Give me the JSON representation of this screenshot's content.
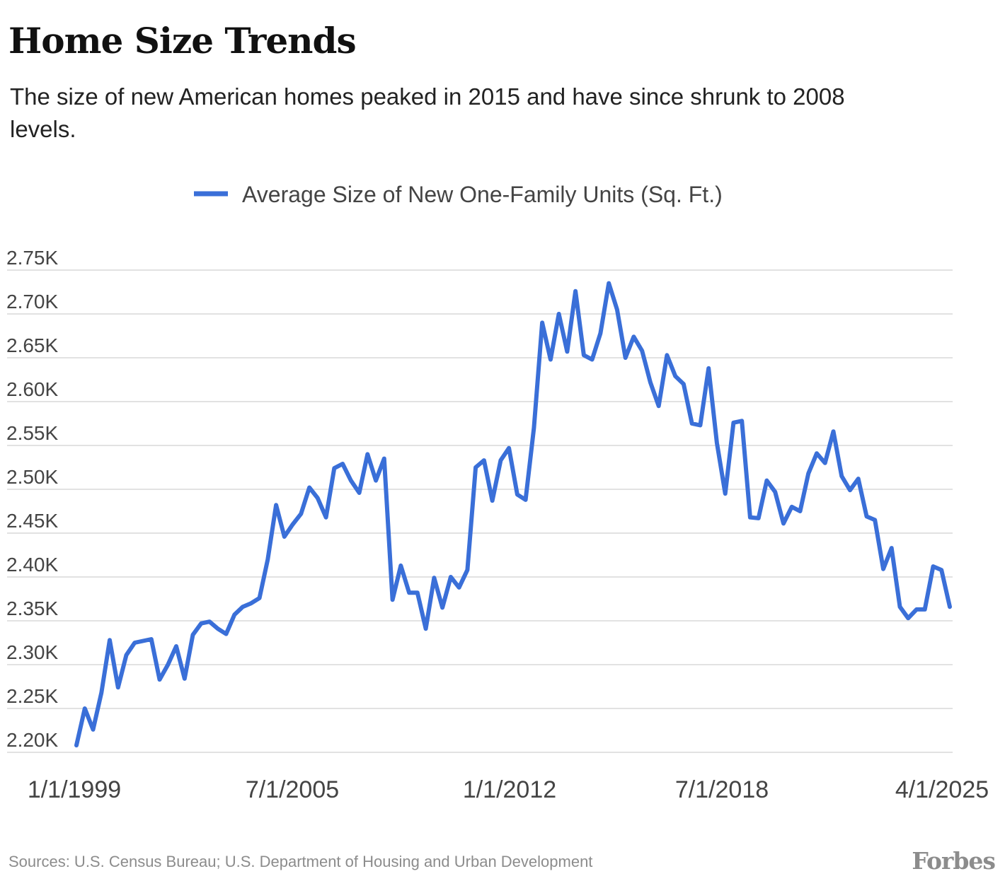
{
  "header": {
    "title": "Home Size Trends",
    "subtitle": "The size of new American homes peaked in 2015 and have since shrunk to 2008 levels."
  },
  "footer": {
    "sources": "Sources: U.S. Census Bureau; U.S. Department of Housing and Urban Development",
    "logo": "Forbes"
  },
  "colors": {
    "line": "#3A6FD8",
    "grid": "#e2e2e2",
    "tick_text": "#444444"
  },
  "chart_data": {
    "type": "line",
    "title": "Home Size Trends",
    "subtitle": "The size of new American homes peaked in 2015 and have since shrunk to 2008 levels.",
    "xlabel": "",
    "ylabel": "",
    "x_ticks": [
      "1/1/1999",
      "7/1/2005",
      "1/1/2012",
      "7/1/2018",
      "4/1/2025"
    ],
    "x_range": [
      "1/1/1999",
      "4/1/2025"
    ],
    "x_interval": "quarterly",
    "y_ticks": [
      2200,
      2250,
      2300,
      2350,
      2400,
      2450,
      2500,
      2550,
      2600,
      2650,
      2700,
      2750
    ],
    "y_tick_labels": [
      "2.20K",
      "2.25K",
      "2.30K",
      "2.35K",
      "2.40K",
      "2.45K",
      "2.50K",
      "2.55K",
      "2.60K",
      "2.65K",
      "2.70K",
      "2.75K"
    ],
    "ylim": [
      2200,
      2750
    ],
    "grid": true,
    "legend": "top-center",
    "series": [
      {
        "name": "Average Size of New One-Family Units (Sq. Ft.)",
        "color": "#3A6FD8",
        "values": [
          2208,
          2250,
          2226,
          2268,
          2328,
          2274,
          2311,
          2325,
          2327,
          2329,
          2283,
          2300,
          2321,
          2284,
          2334,
          2347,
          2349,
          2341,
          2335,
          2357,
          2366,
          2370,
          2376,
          2420,
          2482,
          2446,
          2460,
          2472,
          2502,
          2490,
          2468,
          2524,
          2529,
          2510,
          2496,
          2540,
          2510,
          2535,
          2374,
          2413,
          2382,
          2382,
          2341,
          2399,
          2365,
          2400,
          2388,
          2408,
          2525,
          2533,
          2487,
          2533,
          2547,
          2494,
          2488,
          2570,
          2690,
          2648,
          2700,
          2657,
          2726,
          2653,
          2648,
          2678,
          2735,
          2705,
          2650,
          2674,
          2658,
          2622,
          2595,
          2653,
          2629,
          2620,
          2575,
          2573,
          2638,
          2553,
          2495,
          2576,
          2578,
          2468,
          2467,
          2510,
          2497,
          2461,
          2480,
          2475,
          2518,
          2541,
          2530,
          2566,
          2515,
          2499,
          2512,
          2469,
          2465,
          2409,
          2433,
          2366,
          2353,
          2363,
          2363,
          2412,
          2408,
          2366
        ]
      }
    ]
  }
}
